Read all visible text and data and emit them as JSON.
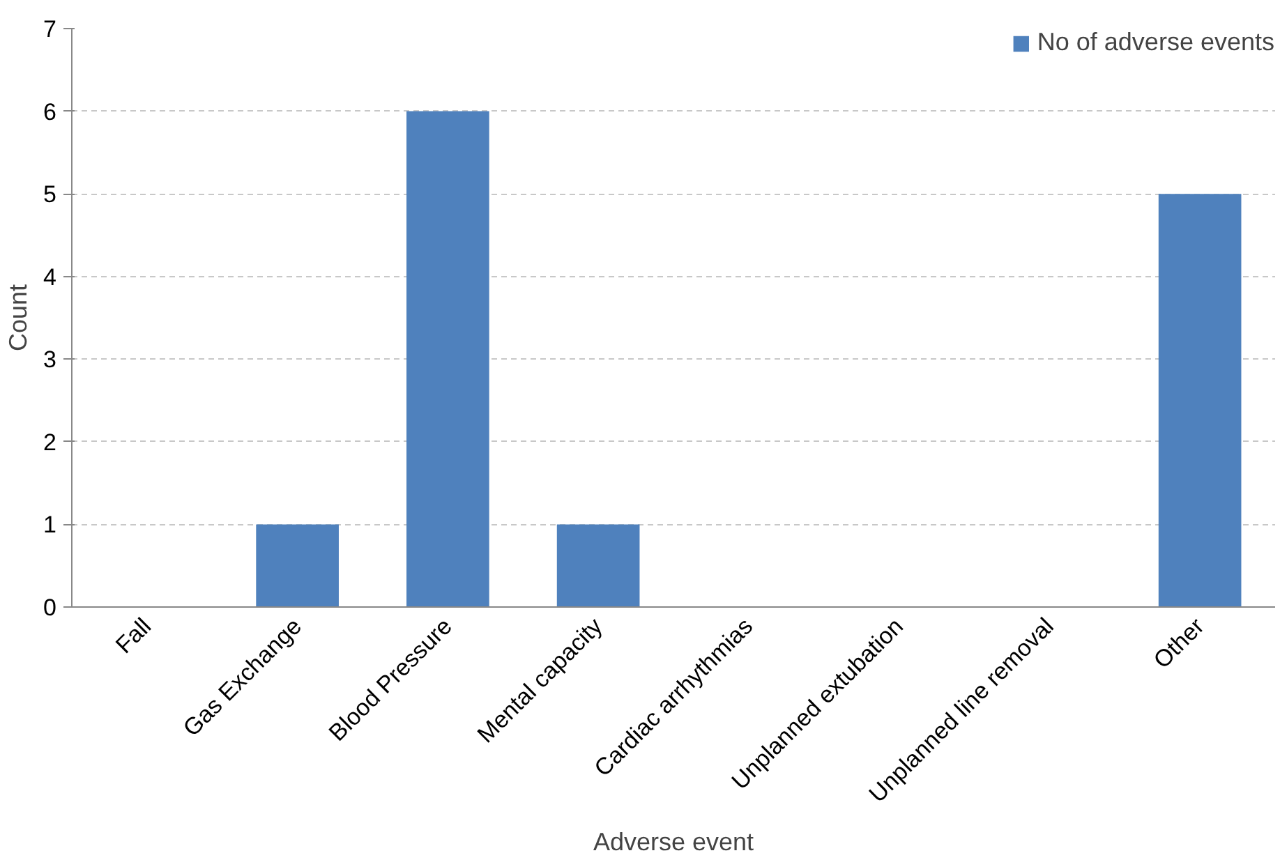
{
  "chart_data": {
    "type": "bar",
    "xlabel": "Adverse event",
    "ylabel": "Count",
    "categories": [
      "Fall",
      "Gas Exchange",
      "Blood Pressure",
      "Mental capacity",
      "Cardiac arrhythmias",
      "Unplanned extubation",
      "Unplanned line removal",
      "Other"
    ],
    "series": [
      {
        "name": "No of adverse events",
        "color": "#4f81bd",
        "values": [
          0,
          1,
          6,
          1,
          0,
          0,
          0,
          5
        ]
      }
    ],
    "ylim": [
      0,
      7
    ],
    "yticks": [
      0,
      1,
      2,
      3,
      4,
      5,
      6,
      7
    ],
    "grid": "y",
    "legend": "top right"
  }
}
